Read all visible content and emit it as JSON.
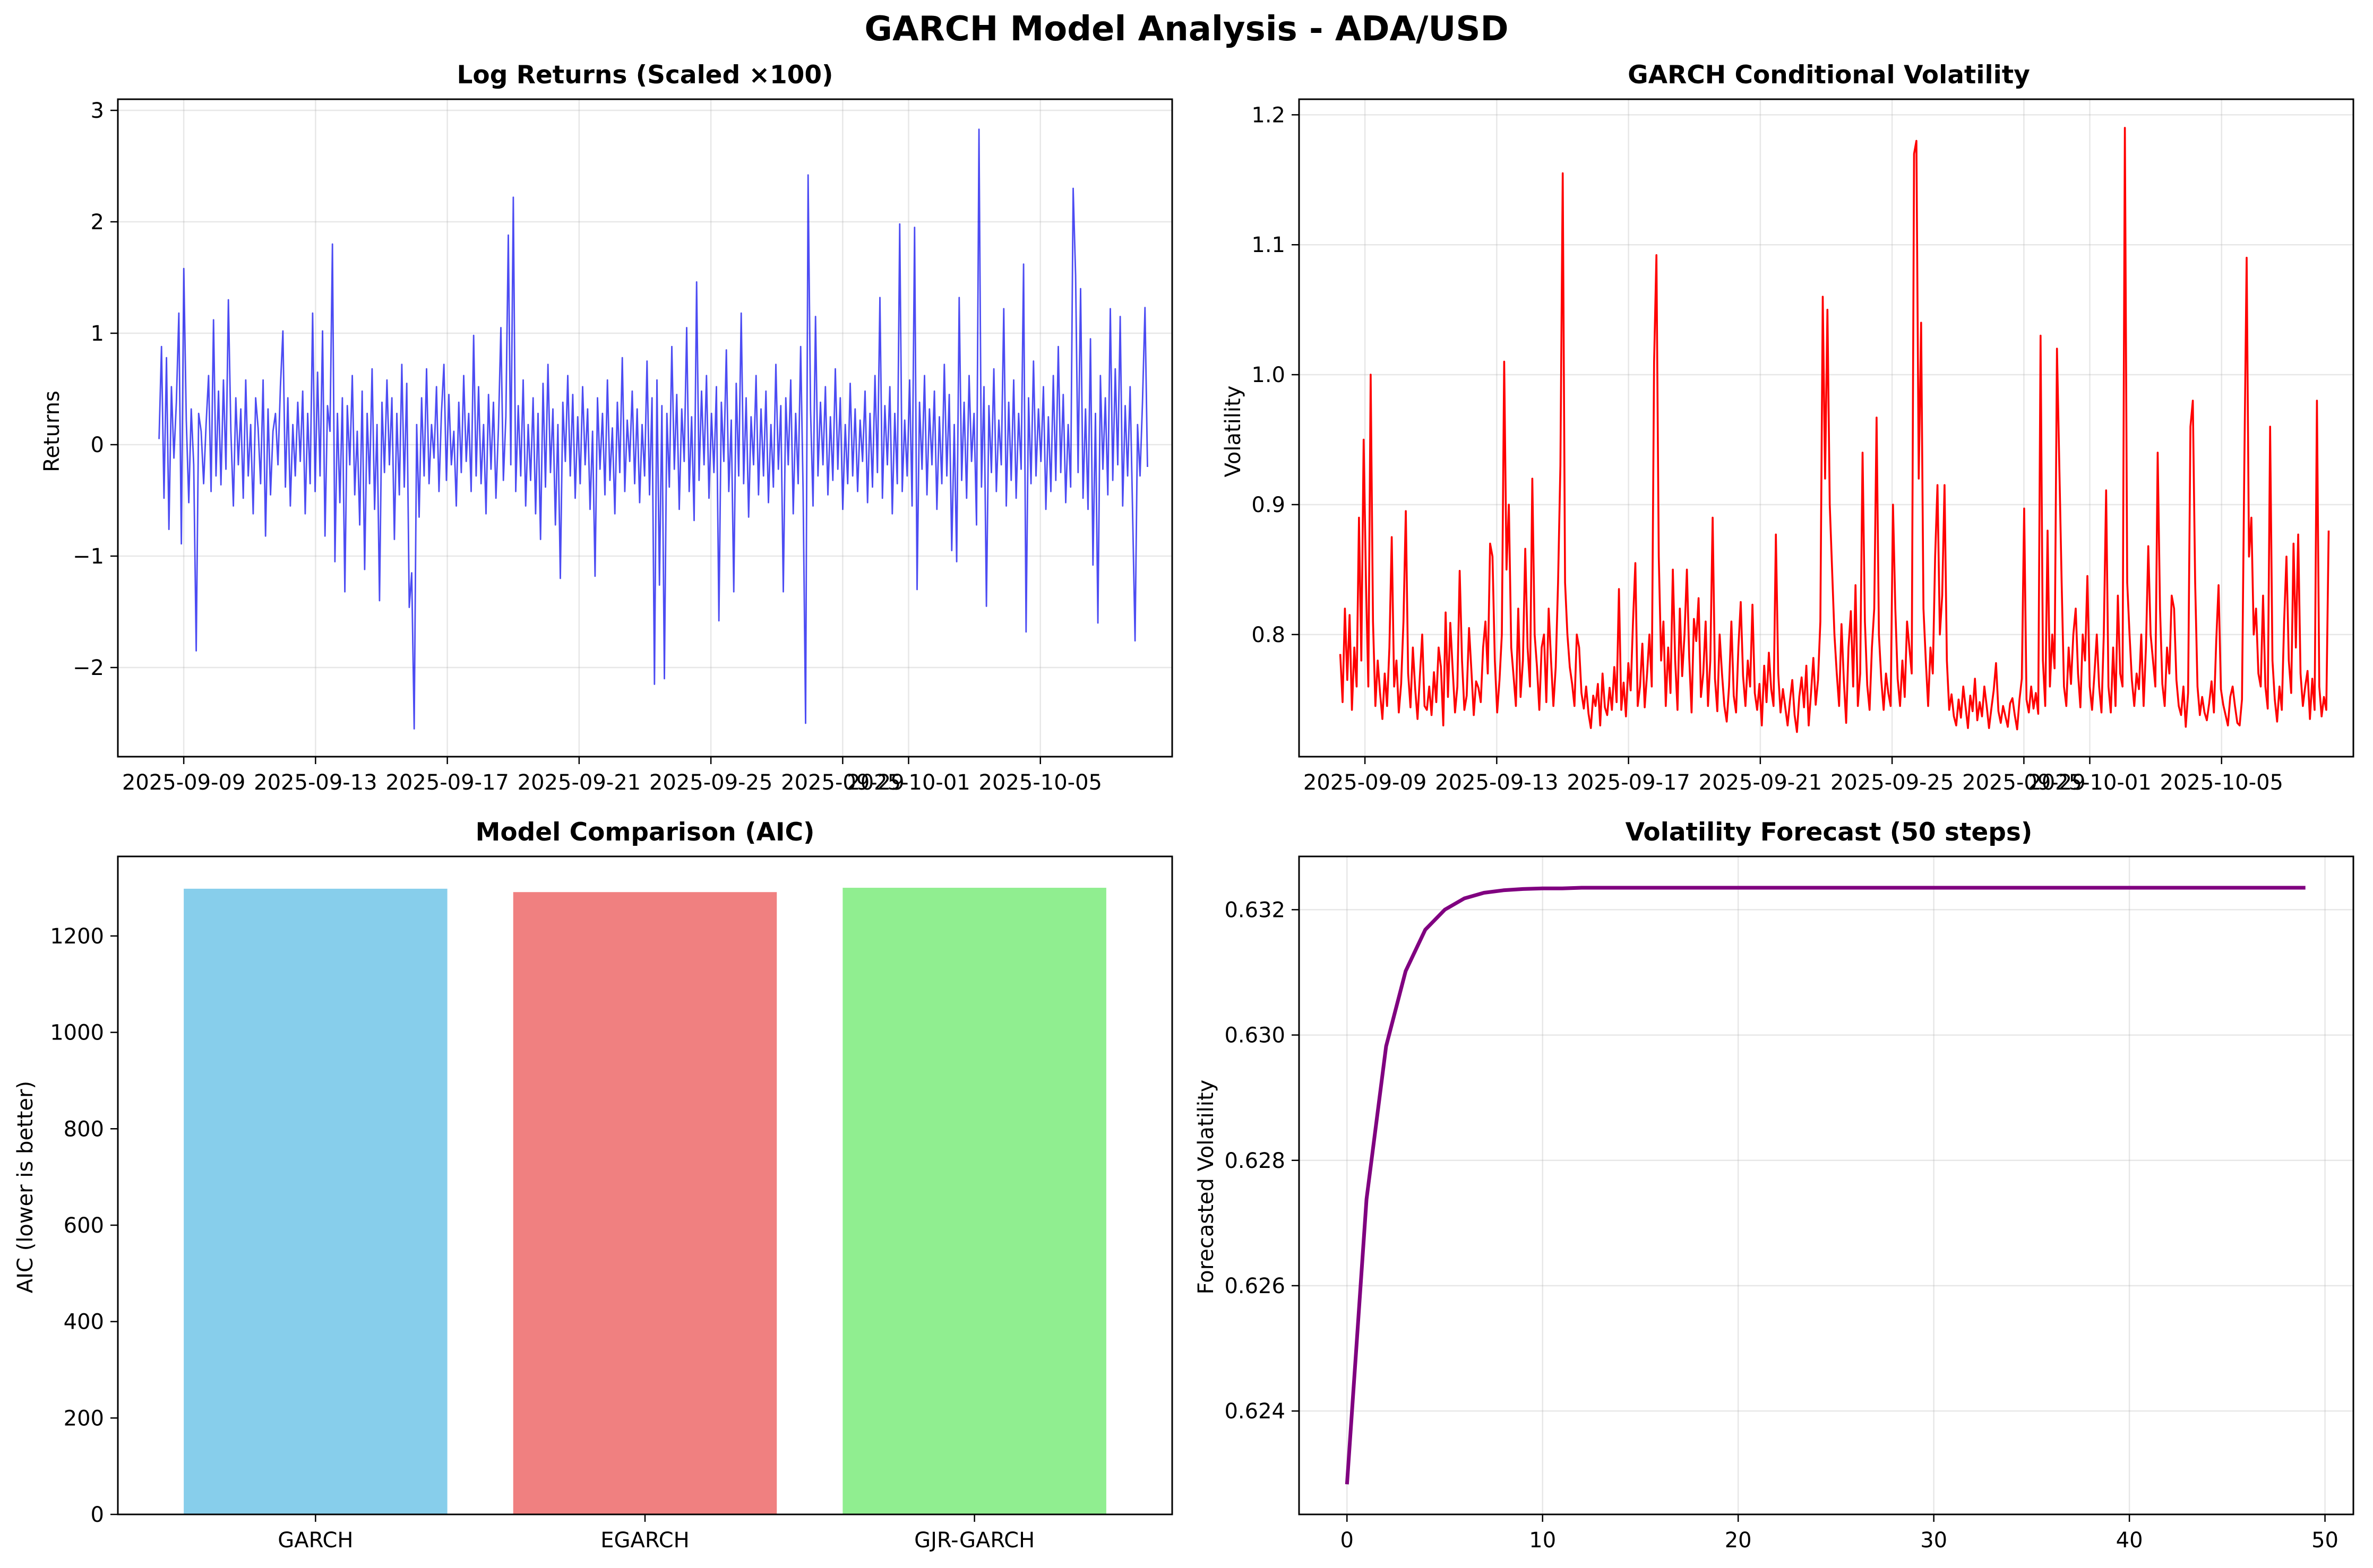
{
  "figure": {
    "title": "GARCH Model Analysis - ADA/USD"
  },
  "chart_data": [
    {
      "id": "returns",
      "type": "line",
      "title": "Log Returns (Scaled ×100)",
      "xlabel": "",
      "ylabel": "Returns",
      "x_type": "date",
      "x_start": "2025-09-08T06:00",
      "x_end": "2025-10-08T06:00",
      "xlim": [
        "2025-09-07",
        "2025-10-09"
      ],
      "ylim": [
        -2.8,
        3.1
      ],
      "x_ticks": [
        "2025-09-09",
        "2025-09-13",
        "2025-09-17",
        "2025-09-21",
        "2025-09-25",
        "2025-09-29",
        "2025-10-01",
        "2025-10-05"
      ],
      "y_ticks": [
        -2,
        -1,
        0,
        1,
        2,
        3
      ],
      "y_tick_labels": [
        "−2",
        "−1",
        "0",
        "1",
        "2",
        "3"
      ],
      "grid": true,
      "color": "#0000ee",
      "series": [
        {
          "values": [
            0.05,
            0.88,
            -0.48,
            0.78,
            -0.76,
            0.52,
            -0.12,
            0.38,
            1.18,
            -0.89,
            1.58,
            0.22,
            -0.52,
            0.32,
            -0.18,
            -1.85,
            0.28,
            0.12,
            -0.35,
            0.18,
            0.62,
            -0.42,
            1.12,
            -0.28,
            0.48,
            -0.36,
            0.58,
            -0.22,
            1.3,
            0.12,
            -0.55,
            0.42,
            -0.18,
            0.32,
            -0.48,
            0.58,
            -0.28,
            0.18,
            -0.62,
            0.42,
            0.15,
            -0.35,
            0.58,
            -0.82,
            0.32,
            -0.45,
            0.12,
            0.28,
            -0.18,
            0.52,
            1.02,
            -0.38,
            0.42,
            -0.55,
            0.18,
            -0.28,
            0.38,
            -0.15,
            0.48,
            -0.62,
            0.28,
            -0.35,
            1.18,
            -0.42,
            0.65,
            -0.28,
            1.02,
            -0.82,
            0.35,
            0.12,
            1.8,
            -1.05,
            0.28,
            -0.52,
            0.42,
            -1.32,
            0.35,
            -0.18,
            0.62,
            -0.45,
            0.12,
            -0.72,
            0.48,
            -1.12,
            0.28,
            -0.35,
            0.68,
            -0.58,
            0.18,
            -1.4,
            0.38,
            -0.25,
            0.58,
            -0.18,
            0.42,
            -0.85,
            0.28,
            -0.45,
            0.72,
            -0.38,
            0.55,
            -1.46,
            -1.15,
            -2.55,
            0.18,
            -0.65,
            0.42,
            -0.28,
            0.68,
            -0.35,
            0.18,
            -0.12,
            0.52,
            -0.42,
            0.28,
            0.72,
            -0.32,
            0.45,
            -0.18,
            0.12,
            -0.55,
            0.38,
            -0.25,
            0.62,
            -0.15,
            0.28,
            -0.42,
            0.98,
            -0.28,
            0.52,
            -0.35,
            0.18,
            -0.62,
            0.45,
            -0.22,
            0.38,
            -0.48,
            0.15,
            1.05,
            -0.32,
            0.25,
            1.88,
            -0.18,
            2.22,
            -0.42,
            0.35,
            -0.28,
            0.58,
            -0.55,
            0.18,
            -0.32,
            0.42,
            -0.62,
            0.28,
            -0.85,
            0.55,
            -0.38,
            0.72,
            -0.25,
            0.32,
            -0.72,
            0.18,
            -1.2,
            0.38,
            -0.15,
            0.62,
            -0.28,
            0.45,
            -0.48,
            0.25,
            -0.35,
            0.52,
            -0.18,
            0.32,
            -0.58,
            0.12,
            -1.18,
            0.42,
            -0.22,
            0.28,
            -0.45,
            0.58,
            -0.32,
            0.15,
            -0.62,
            0.38,
            -0.25,
            0.78,
            -0.42,
            0.22,
            -0.15,
            0.48,
            -0.35,
            0.32,
            -0.52,
            0.18,
            -0.28,
            0.75,
            -0.45,
            0.42,
            -2.15,
            0.58,
            -1.26,
            0.35,
            -2.1,
            0.28,
            -0.38,
            0.88,
            -0.22,
            0.45,
            -0.58,
            0.32,
            -0.15,
            1.05,
            -0.42,
            0.25,
            -0.68,
            1.46,
            -0.32,
            0.48,
            -0.18,
            0.62,
            -0.48,
            0.28,
            -0.25,
            0.52,
            -1.58,
            0.38,
            -0.15,
            0.85,
            -0.42,
            0.22,
            -1.32,
            0.55,
            -0.28,
            1.18,
            -0.35,
            0.42,
            -0.65,
            0.25,
            -0.18,
            0.62,
            -0.45,
            0.32,
            -0.28,
            0.48,
            -0.52,
            0.18,
            -0.38,
            0.72,
            -0.22,
            0.35,
            -1.32,
            0.42,
            -0.18,
            0.58,
            -0.62,
            0.28,
            -0.35,
            0.88,
            -0.42,
            -2.5,
            2.42,
            0.32,
            -0.55,
            1.15,
            -0.28,
            0.38,
            -0.18,
            0.52,
            -0.45,
            0.25,
            -0.32,
            0.68,
            -0.22,
            0.42,
            -0.58,
            0.18,
            -0.35,
            0.55,
            -0.28,
            0.32,
            -0.42,
            0.22,
            -0.15,
            0.48,
            -0.52,
            0.28,
            -0.38,
            0.62,
            -0.25,
            1.32,
            -0.48,
            0.35,
            -0.18,
            0.52,
            -0.62,
            0.28,
            -0.35,
            1.98,
            -0.42,
            0.22,
            -0.28,
            0.58,
            -0.55,
            1.95,
            -1.3,
            0.38,
            -0.22,
            0.62,
            -0.45,
            0.32,
            -0.18,
            0.48,
            -0.58,
            0.25,
            -0.35,
            0.72,
            -0.28,
            0.45,
            -0.95,
            0.18,
            -1.05,
            1.32,
            -0.32,
            0.38,
            -0.48,
            0.62,
            -0.15,
            0.28,
            -0.72,
            2.83,
            -0.38,
            0.52,
            -1.45,
            0.35,
            -0.25,
            0.68,
            -0.42,
            0.22,
            -0.18,
            1.22,
            -0.55,
            0.38,
            -0.32,
            0.58,
            -0.48,
            0.28,
            -0.22,
            1.62,
            -1.68,
            0.42,
            -0.35,
            0.75,
            -0.28,
            0.32,
            -0.15,
            0.52,
            -0.58,
            0.25,
            -0.42,
            0.62,
            -0.32,
            0.88,
            -0.25,
            0.45,
            -0.52,
            0.18,
            -0.38,
            2.3,
            1.52,
            -0.25,
            1.4,
            -0.48,
            0.32,
            -0.58,
            0.95,
            -1.08,
            0.28,
            -1.6,
            0.62,
            -0.22,
            0.42,
            -0.45,
            1.22,
            -0.32,
            0.68,
            -0.18,
            1.15,
            -0.55,
            0.35,
            -0.28,
            0.52,
            -0.62,
            -1.76,
            0.18,
            -0.28,
            0.38,
            1.23,
            -0.2
          ]
        }
      ]
    },
    {
      "id": "volatility",
      "type": "line",
      "title": "GARCH Conditional Volatility",
      "xlabel": "",
      "ylabel": "Volatility",
      "x_type": "date",
      "x_start": "2025-09-08T06:00",
      "x_end": "2025-10-08T06:00",
      "xlim": [
        "2025-09-07",
        "2025-10-09"
      ],
      "ylim": [
        0.706,
        1.212
      ],
      "x_ticks": [
        "2025-09-09",
        "2025-09-13",
        "2025-09-17",
        "2025-09-21",
        "2025-09-25",
        "2025-09-29",
        "2025-10-01",
        "2025-10-05"
      ],
      "y_ticks": [
        0.8,
        0.9,
        1.0,
        1.1,
        1.2
      ],
      "y_tick_labels": [
        "0.8",
        "0.9",
        "1.0",
        "1.1",
        "1.2"
      ],
      "grid": true,
      "color": "#ff0000",
      "series": [
        {
          "values": [
            0.785,
            0.748,
            0.82,
            0.765,
            0.815,
            0.742,
            0.79,
            0.76,
            0.89,
            0.78,
            0.95,
            0.84,
            0.76,
            1.0,
            0.81,
            0.745,
            0.78,
            0.755,
            0.735,
            0.77,
            0.745,
            0.79,
            0.875,
            0.76,
            0.78,
            0.74,
            0.762,
            0.81,
            0.895,
            0.77,
            0.744,
            0.79,
            0.758,
            0.735,
            0.768,
            0.8,
            0.745,
            0.742,
            0.76,
            0.738,
            0.771,
            0.748,
            0.79,
            0.775,
            0.73,
            0.817,
            0.752,
            0.809,
            0.773,
            0.74,
            0.76,
            0.849,
            0.78,
            0.742,
            0.753,
            0.805,
            0.772,
            0.738,
            0.764,
            0.759,
            0.748,
            0.79,
            0.81,
            0.77,
            0.87,
            0.86,
            0.78,
            0.74,
            0.765,
            0.8,
            1.01,
            0.85,
            0.9,
            0.79,
            0.768,
            0.745,
            0.82,
            0.752,
            0.78,
            0.866,
            0.79,
            0.76,
            0.92,
            0.8,
            0.775,
            0.742,
            0.79,
            0.8,
            0.748,
            0.82,
            0.78,
            0.745,
            0.775,
            0.84,
            0.93,
            1.155,
            0.84,
            0.8,
            0.775,
            0.762,
            0.745,
            0.8,
            0.79,
            0.755,
            0.743,
            0.76,
            0.739,
            0.728,
            0.753,
            0.745,
            0.762,
            0.73,
            0.77,
            0.744,
            0.738,
            0.759,
            0.742,
            0.775,
            0.748,
            0.835,
            0.742,
            0.763,
            0.737,
            0.778,
            0.757,
            0.81,
            0.855,
            0.745,
            0.76,
            0.793,
            0.744,
            0.77,
            0.8,
            0.76,
            1.01,
            1.092,
            0.86,
            0.78,
            0.81,
            0.745,
            0.79,
            0.755,
            0.85,
            0.78,
            0.742,
            0.82,
            0.768,
            0.8,
            0.85,
            0.782,
            0.74,
            0.812,
            0.795,
            0.828,
            0.752,
            0.77,
            0.81,
            0.745,
            0.78,
            0.89,
            0.766,
            0.741,
            0.8,
            0.77,
            0.745,
            0.733,
            0.76,
            0.81,
            0.753,
            0.74,
            0.79,
            0.825,
            0.768,
            0.745,
            0.78,
            0.76,
            0.823,
            0.755,
            0.742,
            0.762,
            0.73,
            0.776,
            0.748,
            0.786,
            0.758,
            0.745,
            0.877,
            0.77,
            0.74,
            0.758,
            0.744,
            0.73,
            0.749,
            0.765,
            0.738,
            0.725,
            0.752,
            0.767,
            0.744,
            0.776,
            0.73,
            0.755,
            0.782,
            0.746,
            0.765,
            0.81,
            1.06,
            0.92,
            1.05,
            0.9,
            0.85,
            0.8,
            0.77,
            0.745,
            0.808,
            0.765,
            0.732,
            0.79,
            0.818,
            0.76,
            0.838,
            0.745,
            0.77,
            0.94,
            0.81,
            0.761,
            0.742,
            0.79,
            0.82,
            0.967,
            0.8,
            0.765,
            0.742,
            0.77,
            0.755,
            0.745,
            0.9,
            0.82,
            0.766,
            0.745,
            0.78,
            0.752,
            0.81,
            0.79,
            0.77,
            1.17,
            1.18,
            0.92,
            1.04,
            0.82,
            0.78,
            0.745,
            0.79,
            0.77,
            0.86,
            0.915,
            0.8,
            0.83,
            0.915,
            0.78,
            0.742,
            0.754,
            0.737,
            0.73,
            0.75,
            0.736,
            0.76,
            0.744,
            0.728,
            0.753,
            0.741,
            0.766,
            0.734,
            0.748,
            0.737,
            0.76,
            0.745,
            0.728,
            0.743,
            0.757,
            0.778,
            0.741,
            0.732,
            0.745,
            0.737,
            0.729,
            0.747,
            0.751,
            0.738,
            0.727,
            0.75,
            0.766,
            0.897,
            0.75,
            0.74,
            0.76,
            0.743,
            0.755,
            0.739,
            1.03,
            0.78,
            0.745,
            0.88,
            0.76,
            0.8,
            0.774,
            1.02,
            0.93,
            0.84,
            0.76,
            0.745,
            0.79,
            0.762,
            0.8,
            0.82,
            0.77,
            0.744,
            0.8,
            0.78,
            0.845,
            0.76,
            0.742,
            0.77,
            0.8,
            0.76,
            0.74,
            0.8,
            0.911,
            0.76,
            0.74,
            0.79,
            0.745,
            0.83,
            0.77,
            0.76,
            1.19,
            0.84,
            0.8,
            0.765,
            0.745,
            0.77,
            0.758,
            0.8,
            0.745,
            0.79,
            0.868,
            0.8,
            0.78,
            0.76,
            0.94,
            0.82,
            0.762,
            0.745,
            0.79,
            0.77,
            0.83,
            0.82,
            0.765,
            0.745,
            0.738,
            0.76,
            0.729,
            0.755,
            0.96,
            0.98,
            0.84,
            0.76,
            0.738,
            0.752,
            0.74,
            0.734,
            0.747,
            0.764,
            0.74,
            0.795,
            0.838,
            0.758,
            0.746,
            0.738,
            0.73,
            0.752,
            0.76,
            0.745,
            0.732,
            0.73,
            0.75,
            0.93,
            1.09,
            0.86,
            0.89,
            0.8,
            0.82,
            0.77,
            0.76,
            0.83,
            0.76,
            0.743,
            0.96,
            0.78,
            0.75,
            0.733,
            0.76,
            0.742,
            0.81,
            0.86,
            0.78,
            0.755,
            0.87,
            0.79,
            0.877,
            0.77,
            0.745,
            0.76,
            0.772,
            0.735,
            0.766,
            0.742,
            0.98,
            0.76,
            0.737,
            0.752,
            0.742,
            0.88
          ]
        }
      ]
    },
    {
      "id": "aic",
      "type": "bar",
      "title": "Model Comparison (AIC)",
      "xlabel": "",
      "ylabel": "AIC (lower is better)",
      "categories": [
        "GARCH",
        "EGARCH",
        "GJR-GARCH"
      ],
      "values": [
        1298,
        1291,
        1300
      ],
      "colors": [
        "#87ceeb",
        "#f08080",
        "#90ee90"
      ],
      "ylim": [
        0,
        1365
      ],
      "y_ticks": [
        0,
        200,
        400,
        600,
        800,
        1000,
        1200
      ],
      "grid": false
    },
    {
      "id": "forecast",
      "type": "line",
      "title": "Volatility Forecast (50 steps)",
      "xlabel": "",
      "ylabel": "Forecasted Volatility",
      "xlim": [
        -2.45,
        51.45
      ],
      "ylim": [
        0.62235,
        0.63285
      ],
      "x_ticks": [
        0,
        10,
        20,
        30,
        40,
        50
      ],
      "y_ticks": [
        0.624,
        0.626,
        0.628,
        0.63,
        0.632
      ],
      "y_tick_labels": [
        "0.624",
        "0.626",
        "0.628",
        "0.630",
        "0.632"
      ],
      "grid": true,
      "color": "#800080",
      "series": [
        {
          "x": [
            0,
            1,
            2,
            3,
            4,
            5,
            6,
            7,
            8,
            9,
            10,
            11,
            12,
            13,
            14,
            15,
            20,
            25,
            30,
            35,
            40,
            45,
            49
          ],
          "values": [
            0.62283,
            0.62738,
            0.62982,
            0.63102,
            0.63168,
            0.632,
            0.63218,
            0.63227,
            0.63231,
            0.63233,
            0.63234,
            0.63234,
            0.63235,
            0.63235,
            0.63235,
            0.63235,
            0.63235,
            0.63235,
            0.63235,
            0.63235,
            0.63235,
            0.63235,
            0.63235
          ]
        }
      ]
    }
  ]
}
